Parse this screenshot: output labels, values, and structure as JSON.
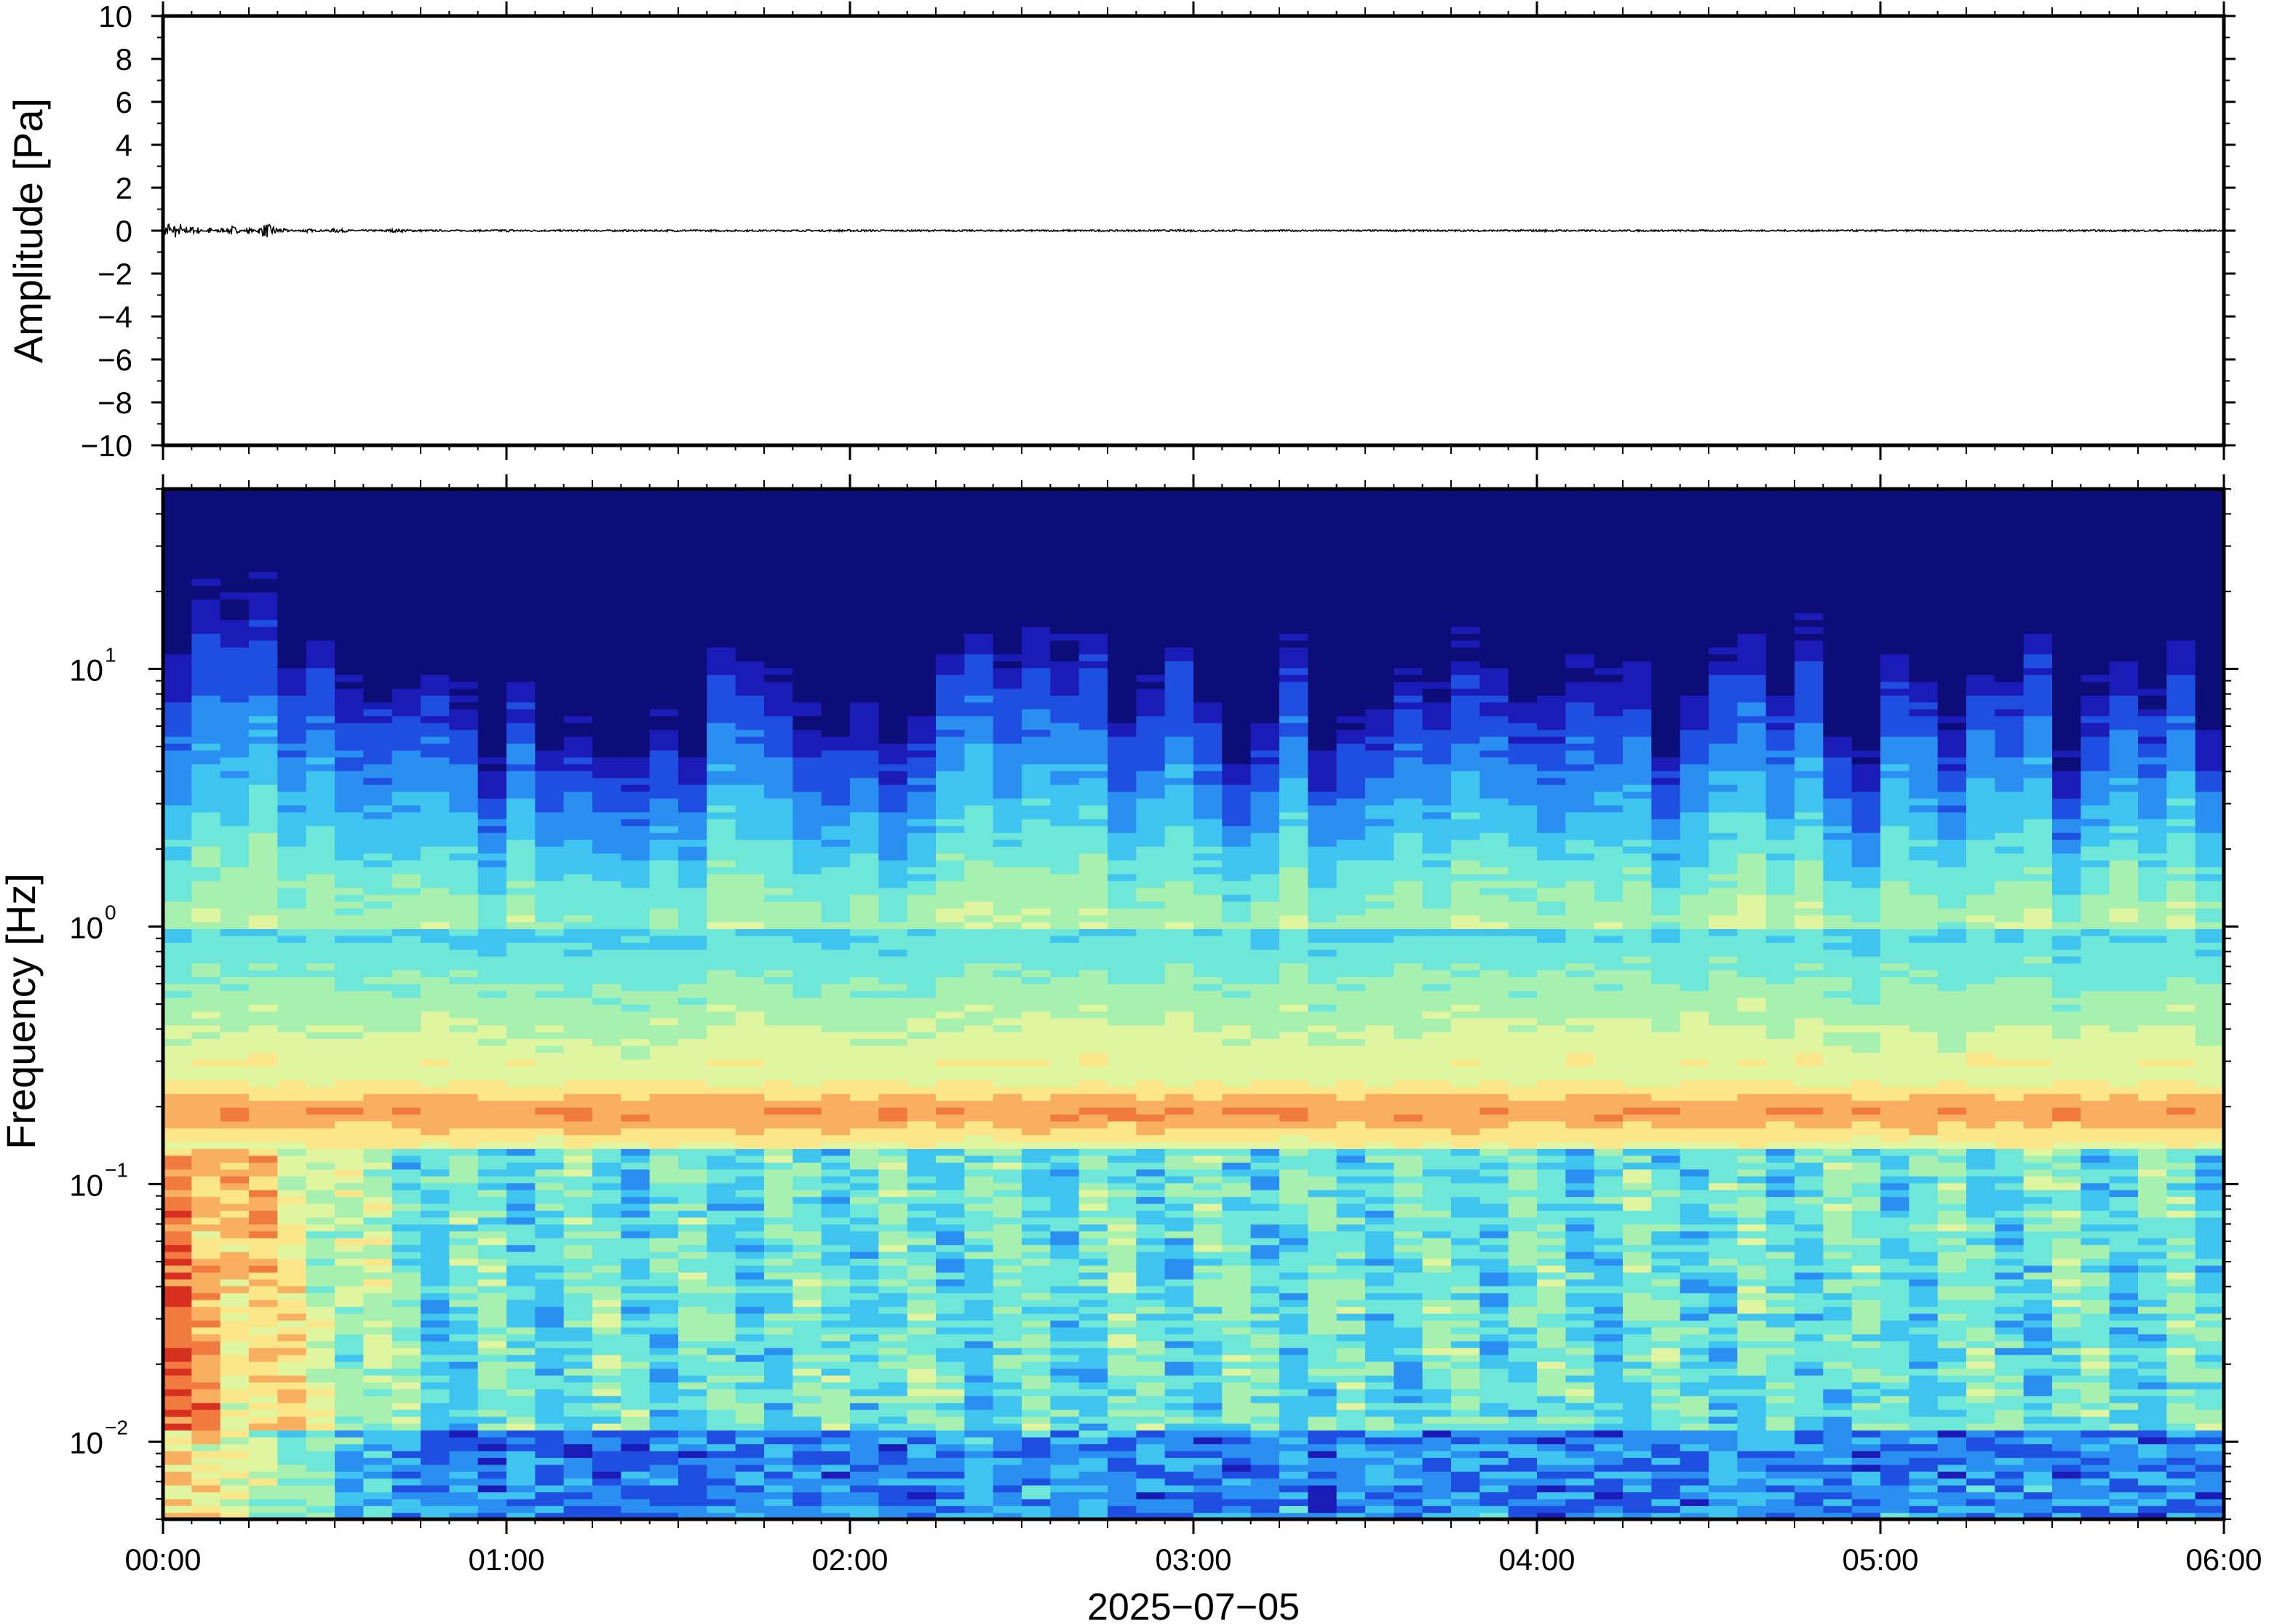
{
  "chart_data": [
    {
      "type": "line",
      "ylabel": "Amplitude [Pa]",
      "ylim": [
        -10,
        10
      ],
      "yticks": [
        "10",
        "8",
        "6",
        "4",
        "2",
        "0",
        "−2",
        "−4",
        "−6",
        "−8",
        "−10"
      ],
      "x_range": [
        "00:00",
        "06:00"
      ],
      "series": [
        {
          "x_minutes": [
            0,
            1,
            2,
            3,
            4,
            5,
            6,
            8,
            10,
            12,
            15,
            18,
            20,
            25,
            30,
            40,
            60,
            90,
            120,
            180,
            240,
            300,
            360
          ],
          "y": [
            0.0,
            0.6,
            -0.5,
            0.4,
            -0.3,
            0.3,
            -0.2,
            0.2,
            -0.2,
            0.25,
            -0.15,
            0.35,
            0.15,
            -0.1,
            0.1,
            -0.08,
            0.06,
            -0.05,
            0.05,
            -0.05,
            0.05,
            -0.04,
            0.04
          ]
        }
      ],
      "line_color": "#000000",
      "grid": false
    },
    {
      "type": "heatmap",
      "ylabel": "Frequency [Hz]",
      "yscale": "log",
      "ylim_hz": [
        0.005,
        50
      ],
      "yticks": [
        {
          "base": "10",
          "exp": "1",
          "value": 10
        },
        {
          "base": "10",
          "exp": "0",
          "value": 1
        },
        {
          "base": "10",
          "exp": "−1",
          "value": 0.1
        },
        {
          "base": "10",
          "exp": "−2",
          "value": 0.01
        }
      ],
      "xlabel": "2025−07−05",
      "xticks": [
        "00:00",
        "01:00",
        "02:00",
        "03:00",
        "04:00",
        "05:00",
        "06:00"
      ],
      "colormap": [
        "#0d0d7a",
        "#1b1bb8",
        "#1f4fe0",
        "#2a8ff0",
        "#3fc4f0",
        "#6ee6d8",
        "#a8f0b0",
        "#dff5a0",
        "#fbe68a",
        "#f8b060",
        "#f07a40",
        "#d83020"
      ],
      "energy_description": "high power 0.15–0.25 Hz band across all time; strong low-frequency energy below 0.1 Hz during 00:00–00:40; dark blue above ~10 Hz",
      "grid": false
    }
  ]
}
